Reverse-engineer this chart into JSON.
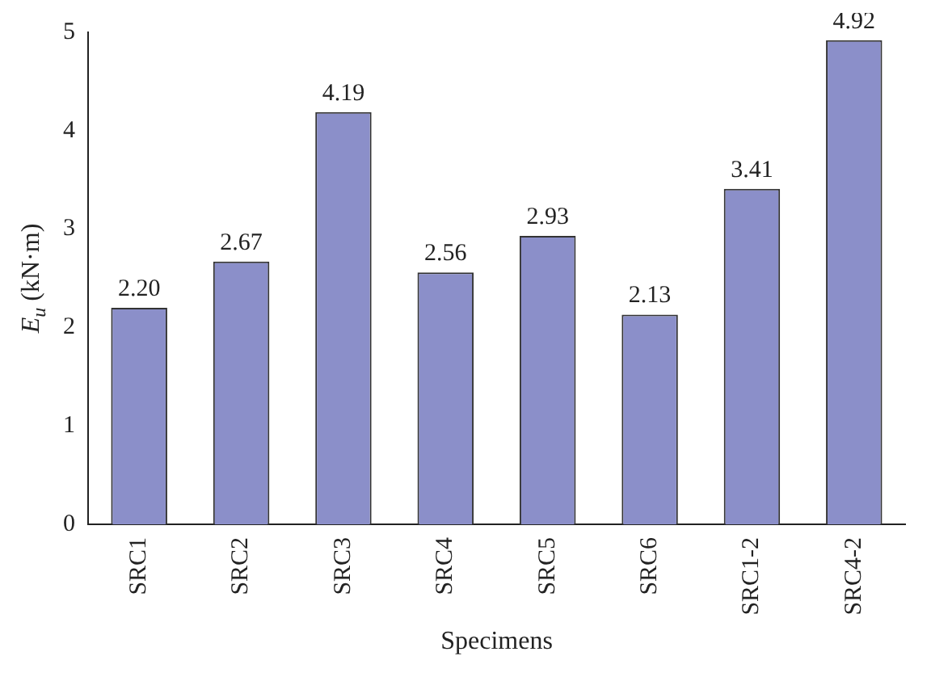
{
  "chart_data": {
    "type": "bar",
    "xlabel": "Specimens",
    "ylabel": "E$_{u}$ (kN·m)",
    "categories": [
      "SRC1",
      "SRC2",
      "SRC3",
      "SRC4",
      "SRC5",
      "SRC6",
      "SRC1-2",
      "SRC4-2"
    ],
    "values": [
      2.2,
      2.67,
      4.19,
      2.56,
      2.93,
      2.13,
      3.41,
      4.92
    ],
    "color": "#8b8fc9",
    "ylim": [
      0,
      5
    ],
    "yticks": [
      0,
      1,
      2,
      3,
      4,
      5
    ],
    "value_labels": [
      "2.20",
      "2.67",
      "4.19",
      "2.56",
      "2.93",
      "2.13",
      "3.41",
      "4.92"
    ],
    "grid": false,
    "legend": false
  }
}
